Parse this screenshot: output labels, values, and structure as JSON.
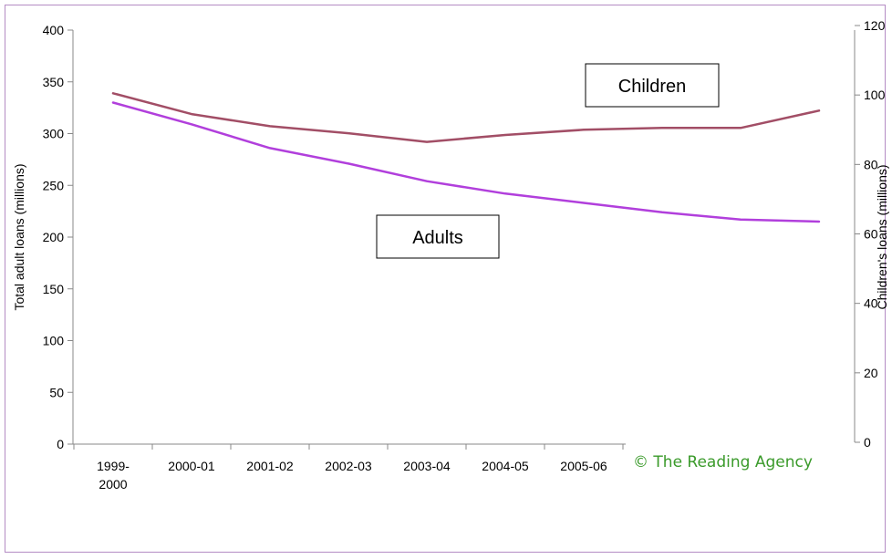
{
  "chart_data": {
    "type": "line",
    "title": "",
    "categories": [
      "1999-2000",
      "2000-01",
      "2001-02",
      "2002-03",
      "2003-04",
      "2004-05",
      "2005-06",
      "",
      "",
      ""
    ],
    "category_lines": [
      [
        "1999-",
        "2000"
      ],
      [
        "2000-01"
      ],
      [
        "2001-02"
      ],
      [
        "2002-03"
      ],
      [
        "2003-04"
      ],
      [
        "2004-05"
      ],
      [
        "2005-06"
      ],
      [
        ""
      ],
      [
        ""
      ],
      [
        ""
      ]
    ],
    "series": [
      {
        "name": "Adults",
        "axis": "left",
        "color": "#b13fdc",
        "values": [
          330,
          309,
          286,
          271,
          254,
          242,
          233,
          224,
          217,
          215
        ]
      },
      {
        "name": "Children",
        "axis": "right",
        "color": "#a24e66",
        "values": [
          100.5,
          94.5,
          91,
          89,
          86.5,
          88.5,
          90,
          90.5,
          90.5,
          95.5
        ]
      }
    ],
    "ylabel": "Total adult loans (millions)",
    "y2label": "Children's loans (millions)",
    "ylim": [
      0,
      400
    ],
    "y2lim": [
      0,
      120
    ],
    "yticks": [
      0,
      50,
      100,
      150,
      200,
      250,
      300,
      350,
      400
    ],
    "y2ticks": [
      0,
      20,
      40,
      60,
      80,
      100,
      120
    ],
    "grid": false,
    "annotations": {
      "children_box": "Children",
      "adults_box": "Adults",
      "copyright": "© The Reading Agency"
    },
    "copyright_color": "#3a9a2a"
  }
}
